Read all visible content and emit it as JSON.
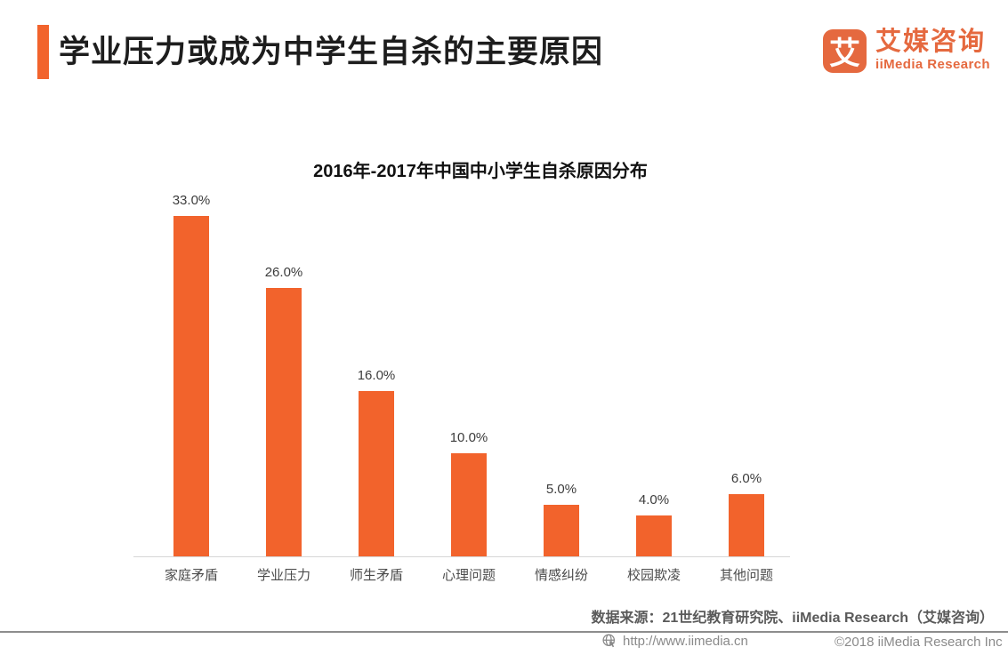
{
  "page": {
    "title": "学业压力或成为中学生自杀的主要原因"
  },
  "logo": {
    "glyph": "艾",
    "cn": "艾媒咨询",
    "en": "iiMedia Research"
  },
  "chart_data": {
    "type": "bar",
    "title": "2016年-2017年中国中小学生自杀原因分布",
    "categories": [
      "家庭矛盾",
      "学业压力",
      "师生矛盾",
      "心理问题",
      "情感纠纷",
      "校园欺凌",
      "其他问题"
    ],
    "values": [
      33.0,
      26.0,
      16.0,
      10.0,
      5.0,
      4.0,
      6.0
    ],
    "value_labels": [
      "33.0%",
      "26.0%",
      "16.0%",
      "10.0%",
      "5.0%",
      "4.0%",
      "6.0%"
    ],
    "unit": "percent",
    "ylim": [
      0,
      35
    ],
    "grid": false,
    "legend": "none",
    "bar_color": "#F2632C"
  },
  "source_note": "数据来源：21世纪教育研究院、iiMedia Research（艾媒咨询）",
  "footer": {
    "url": "http://www.iimedia.cn",
    "copyright": "©2018 iiMedia Research Inc"
  },
  "colors": {
    "accent": "#F2632C",
    "logo_orange": "#E5693F",
    "title_text": "#1D1D1D",
    "axis_line": "#D6D6D6",
    "category_text": "#4C4C4C",
    "value_text": "#3C3C3C",
    "source_text": "#5A5A5A",
    "footer_text": "#8A8A8A",
    "divider": "#8D8D8D"
  }
}
